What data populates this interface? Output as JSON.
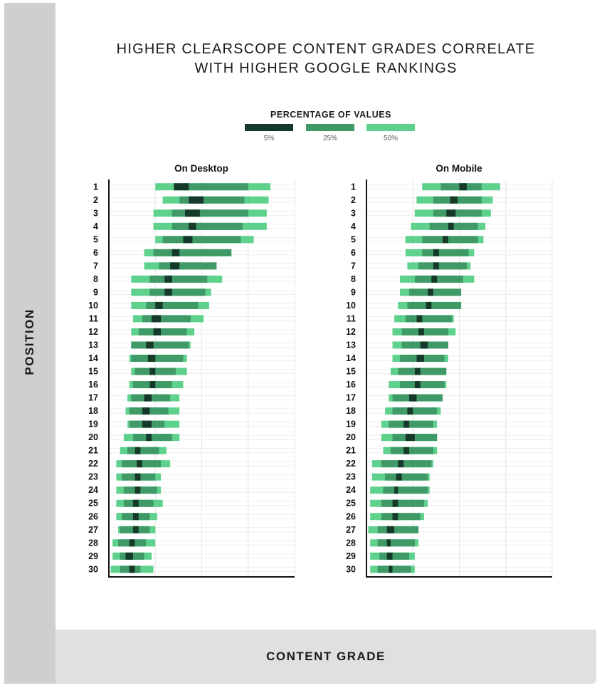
{
  "title": "HIGHER CLEARSCOPE CONTENT GRADES CORRELATE\nWITH HIGHER GOOGLE RANKINGS",
  "y_axis_title": "POSITION",
  "x_axis_title": "CONTENT GRADE",
  "legend": {
    "title": "PERCENTAGE OF VALUES",
    "items": [
      {
        "label": "5%",
        "color": "#163a2a"
      },
      {
        "label": "25%",
        "color": "#3f9a67"
      },
      {
        "label": "50%",
        "color": "#5ed18d"
      }
    ]
  },
  "chart_data": {
    "type": "range-bar",
    "categories": [
      "1",
      "2",
      "3",
      "4",
      "5",
      "6",
      "7",
      "8",
      "9",
      "10",
      "11",
      "12",
      "13",
      "14",
      "15",
      "16",
      "17",
      "18",
      "19",
      "20",
      "21",
      "22",
      "23",
      "24",
      "25",
      "26",
      "27",
      "28",
      "29",
      "30"
    ],
    "grid": true,
    "panels": [
      {
        "title": "On Desktop",
        "bands": [
          [
            [
              35,
              43
            ],
            [
              39,
              75
            ],
            [
              25,
              87
            ]
          ],
          [
            [
              43,
              51
            ],
            [
              38,
              73
            ],
            [
              29,
              86
            ]
          ],
          [
            [
              41,
              49
            ],
            [
              34,
              75
            ],
            [
              24,
              85
            ]
          ],
          [
            [
              43,
              47
            ],
            [
              34,
              72
            ],
            [
              24,
              85
            ]
          ],
          [
            [
              40,
              45
            ],
            [
              29,
              71
            ],
            [
              25,
              78
            ]
          ],
          [
            [
              34,
              38
            ],
            [
              24,
              66
            ],
            [
              19,
              65
            ]
          ],
          [
            [
              33,
              38
            ],
            [
              27,
              58
            ],
            [
              19,
              57
            ]
          ],
          [
            [
              30,
              34
            ],
            [
              22,
              53
            ],
            [
              12,
              61
            ]
          ],
          [
            [
              30,
              34
            ],
            [
              22,
              52
            ],
            [
              12,
              55
            ]
          ],
          [
            [
              25,
              29
            ],
            [
              20,
              48
            ],
            [
              12,
              54
            ]
          ],
          [
            [
              23,
              28
            ],
            [
              18,
              44
            ],
            [
              13,
              51
            ]
          ],
          [
            [
              24,
              28
            ],
            [
              16,
              42
            ],
            [
              12,
              46
            ]
          ],
          [
            [
              20,
              24
            ],
            [
              12,
              43
            ],
            [
              12,
              44
            ]
          ],
          [
            [
              21,
              25
            ],
            [
              12,
              40
            ],
            [
              11,
              42
            ]
          ],
          [
            [
              22,
              25
            ],
            [
              14,
              36
            ],
            [
              12,
              42
            ]
          ],
          [
            [
              22,
              25
            ],
            [
              13,
              34
            ],
            [
              11,
              40
            ]
          ],
          [
            [
              19,
              23
            ],
            [
              12,
              33
            ],
            [
              10,
              38
            ]
          ],
          [
            [
              18,
              22
            ],
            [
              11,
              32
            ],
            [
              9,
              38
            ]
          ],
          [
            [
              18,
              23
            ],
            [
              11,
              30
            ],
            [
              10,
              38
            ]
          ],
          [
            [
              20,
              23
            ],
            [
              13,
              34
            ],
            [
              8,
              38
            ]
          ],
          [
            [
              14,
              17
            ],
            [
              10,
              27
            ],
            [
              6,
              31
            ]
          ],
          [
            [
              15,
              18
            ],
            [
              7,
              28
            ],
            [
              4,
              33
            ]
          ],
          [
            [
              14,
              17
            ],
            [
              7,
              25
            ],
            [
              4,
              28
            ]
          ],
          [
            [
              14,
              17
            ],
            [
              8,
              26
            ],
            [
              4,
              28
            ]
          ],
          [
            [
              13,
              16
            ],
            [
              8,
              24
            ],
            [
              4,
              29
            ]
          ],
          [
            [
              13,
              16
            ],
            [
              7,
              22
            ],
            [
              4,
              26
            ]
          ],
          [
            [
              13,
              16
            ],
            [
              6,
              22
            ],
            [
              5,
              25
            ]
          ],
          [
            [
              11,
              14
            ],
            [
              5,
              20
            ],
            [
              2,
              25
            ]
          ],
          [
            [
              9,
              13
            ],
            [
              6,
              19
            ],
            [
              2,
              23
            ]
          ],
          [
            [
              11,
              14
            ],
            [
              6,
              17
            ],
            [
              1,
              24
            ]
          ]
        ]
      },
      {
        "title": "On Mobile",
        "bands": [
          [
            [
              50,
              54
            ],
            [
              40,
              62
            ],
            [
              30,
              72
            ]
          ],
          [
            [
              45,
              49
            ],
            [
              36,
              62
            ],
            [
              27,
              68
            ]
          ],
          [
            [
              43,
              48
            ],
            [
              36,
              62
            ],
            [
              26,
              67
            ]
          ],
          [
            [
              44,
              47
            ],
            [
              34,
              60
            ],
            [
              24,
              64
            ]
          ],
          [
            [
              41,
              44
            ],
            [
              30,
              60
            ],
            [
              21,
              63
            ]
          ],
          [
            [
              36,
              39
            ],
            [
              30,
              55
            ],
            [
              21,
              58
            ]
          ],
          [
            [
              36,
              39
            ],
            [
              28,
              54
            ],
            [
              22,
              56
            ]
          ],
          [
            [
              35,
              38
            ],
            [
              26,
              52
            ],
            [
              18,
              58
            ]
          ],
          [
            [
              33,
              36
            ],
            [
              23,
              51
            ],
            [
              18,
              50
            ]
          ],
          [
            [
              32,
              35
            ],
            [
              22,
              51
            ],
            [
              17,
              49
            ]
          ],
          [
            [
              27,
              30
            ],
            [
              21,
              46
            ],
            [
              15,
              47
            ]
          ],
          [
            [
              28,
              31
            ],
            [
              19,
              44
            ],
            [
              14,
              48
            ]
          ],
          [
            [
              29,
              33
            ],
            [
              19,
              44
            ],
            [
              14,
              44
            ]
          ],
          [
            [
              27,
              31
            ],
            [
              18,
              42
            ],
            [
              14,
              44
            ]
          ],
          [
            [
              26,
              29
            ],
            [
              17,
              43
            ],
            [
              13,
              43
            ]
          ],
          [
            [
              26,
              29
            ],
            [
              18,
              42
            ],
            [
              12,
              43
            ]
          ],
          [
            [
              23,
              27
            ],
            [
              14,
              41
            ],
            [
              12,
              41
            ]
          ],
          [
            [
              22,
              25
            ],
            [
              14,
              38
            ],
            [
              10,
              40
            ]
          ],
          [
            [
              20,
              23
            ],
            [
              12,
              36
            ],
            [
              8,
              38
            ]
          ],
          [
            [
              21,
              26
            ],
            [
              14,
              38
            ],
            [
              8,
              38
            ]
          ],
          [
            [
              20,
              23
            ],
            [
              13,
              36
            ],
            [
              9,
              38
            ]
          ],
          [
            [
              17,
              20
            ],
            [
              8,
              35
            ],
            [
              3,
              36
            ]
          ],
          [
            [
              16,
              19
            ],
            [
              10,
              33
            ],
            [
              3,
              34
            ]
          ],
          [
            [
              15,
              17
            ],
            [
              9,
              33
            ],
            [
              2,
              34
            ]
          ],
          [
            [
              14,
              17
            ],
            [
              8,
              31
            ],
            [
              2,
              33
            ]
          ],
          [
            [
              14,
              17
            ],
            [
              8,
              29
            ],
            [
              2,
              31
            ]
          ],
          [
            [
              11,
              15
            ],
            [
              6,
              28
            ],
            [
              1,
              28
            ]
          ],
          [
            [
              11,
              13
            ],
            [
              6,
              26
            ],
            [
              2,
              28
            ]
          ],
          [
            [
              11,
              14
            ],
            [
              7,
              23
            ],
            [
              2,
              26
            ]
          ],
          [
            [
              12,
              14
            ],
            [
              6,
              24
            ],
            [
              2,
              26
            ]
          ]
        ]
      }
    ]
  }
}
